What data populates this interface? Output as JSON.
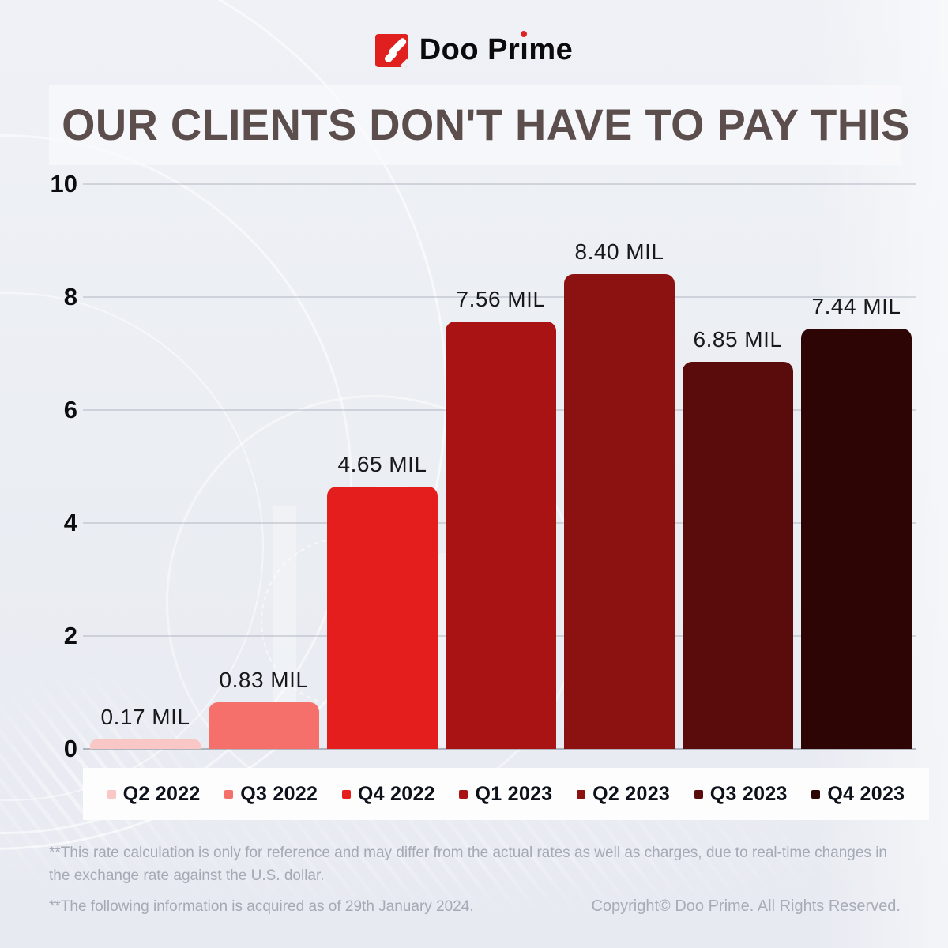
{
  "logo": {
    "text_left": "Doo Pr",
    "text_i": "ı",
    "text_right": "me",
    "accent_color": "#e01f1f"
  },
  "title": "OUR CLIENTS DON'T HAVE TO PAY THIS",
  "chart_data": {
    "type": "bar",
    "title": "OUR CLIENTS DON'T HAVE TO PAY THIS",
    "categories": [
      "Q2 2022",
      "Q3 2022",
      "Q4 2022",
      "Q1 2023",
      "Q2 2023",
      "Q3 2023",
      "Q4 2023"
    ],
    "values": [
      0.17,
      0.83,
      4.65,
      7.56,
      8.4,
      6.85,
      7.44
    ],
    "value_labels": [
      "0.17 MIL",
      "0.83 MIL",
      "4.65 MIL",
      "7.56 MIL",
      "8.40 MIL",
      "6.85 MIL",
      "7.44 MIL"
    ],
    "bar_colors": [
      "#f9c7c5",
      "#f5706a",
      "#e41d1d",
      "#a91313",
      "#8c1111",
      "#5a0c0c",
      "#2d0505"
    ],
    "unit": "MIL",
    "xlabel": "",
    "ylabel": "",
    "ylim": [
      0,
      10
    ],
    "yticks": [
      0,
      2,
      4,
      6,
      8,
      10
    ],
    "grid": true,
    "legend_position": "bottom"
  },
  "legend": {
    "items": [
      {
        "label": "Q2 2022",
        "color": "#f9c7c5"
      },
      {
        "label": "Q3 2022",
        "color": "#f5706a"
      },
      {
        "label": "Q4 2022",
        "color": "#e41d1d"
      },
      {
        "label": "Q1 2023",
        "color": "#a91313"
      },
      {
        "label": "Q2 2023",
        "color": "#8c1111"
      },
      {
        "label": "Q3 2023",
        "color": "#5a0c0c"
      },
      {
        "label": "Q4 2023",
        "color": "#2d0505"
      }
    ]
  },
  "footnotes": {
    "rate_note": "**This rate calculation is only for reference and may differ from the actual rates as well as charges, due to real-time changes in the exchange rate against the U.S. dollar.",
    "date_note": "**The following information is acquired as of 29th January 2024."
  },
  "copyright": "Copyright© Doo Prime. All Rights Reserved."
}
